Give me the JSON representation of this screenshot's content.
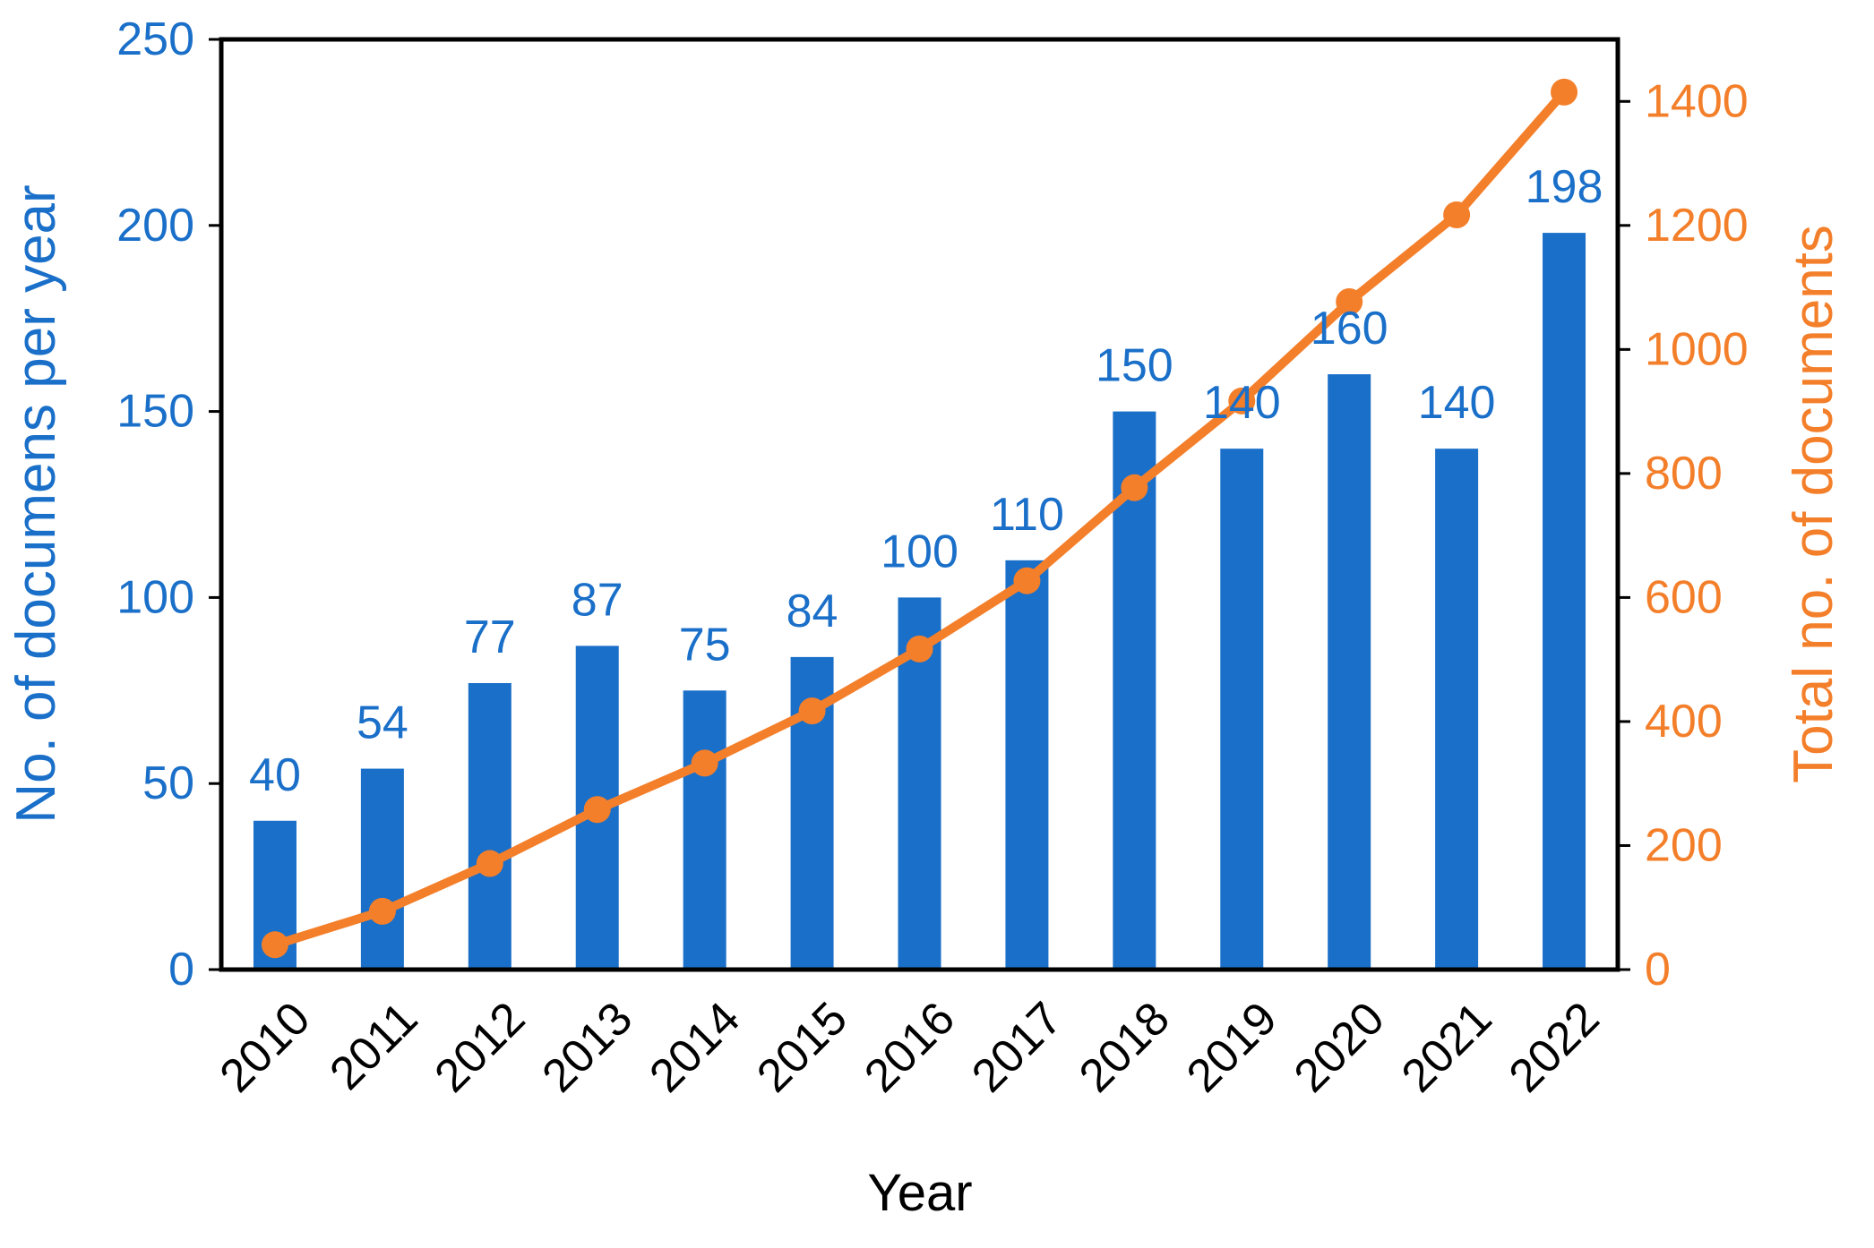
{
  "chart_data": {
    "type": "bar+line",
    "title": "",
    "xlabel": "Year",
    "categories": [
      "2010",
      "2011",
      "2012",
      "2013",
      "2014",
      "2015",
      "2016",
      "2017",
      "2018",
      "2019",
      "2020",
      "2021",
      "2022"
    ],
    "series": [
      {
        "name": "No. of documens per year",
        "type": "bar",
        "axis": "left",
        "color": "#1a6fc9",
        "values": [
          40,
          54,
          77,
          87,
          75,
          84,
          100,
          110,
          150,
          140,
          160,
          140,
          198
        ],
        "data_labels": [
          "40",
          "54",
          "77",
          "87",
          "75",
          "84",
          "100",
          "110",
          "150",
          "140",
          "160",
          "140",
          "198"
        ]
      },
      {
        "name": "Total no. of documents",
        "type": "line",
        "axis": "right",
        "color": "#f47f2a",
        "values": [
          40,
          94,
          171,
          258,
          333,
          417,
          517,
          627,
          777,
          917,
          1077,
          1217,
          1415
        ]
      }
    ],
    "y_left": {
      "label": "No. of documens per year",
      "range": [
        0,
        250
      ],
      "ticks": [
        "0",
        "50",
        "100",
        "150",
        "200",
        "250"
      ],
      "color": "#1a6fc9"
    },
    "y_right": {
      "label": "Total no. of documents",
      "range": [
        0,
        1500
      ],
      "ticks": [
        "0",
        "200",
        "400",
        "600",
        "800",
        "1000",
        "1200",
        "1400"
      ],
      "color": "#f47f2a"
    },
    "grid": false,
    "legend": "none"
  }
}
